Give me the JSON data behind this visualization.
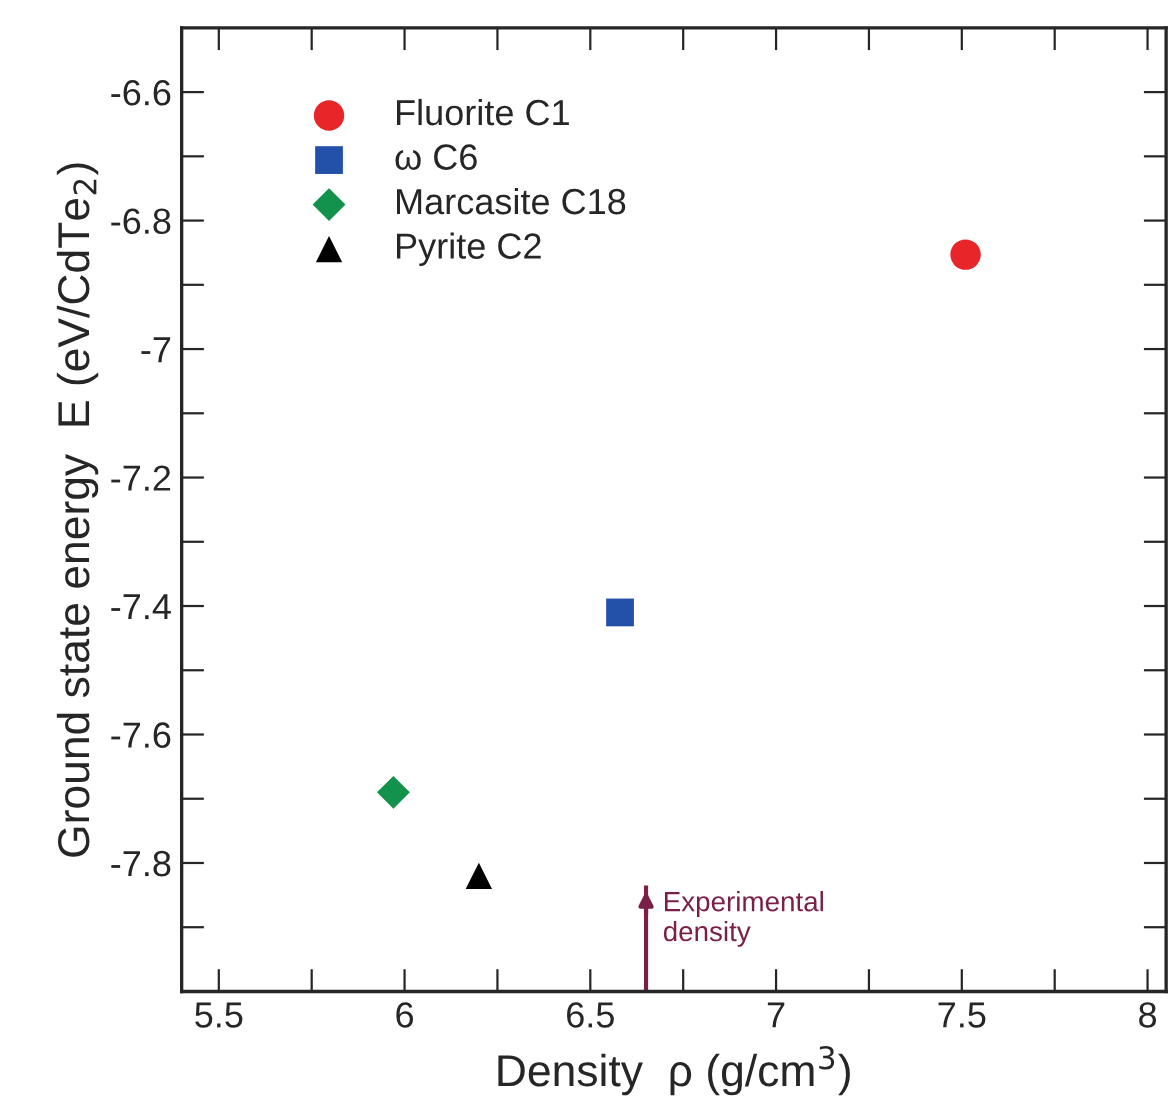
{
  "chart_data": {
    "type": "scatter",
    "xlabel": "Density  ρ (g/cm$^{3}$)",
    "ylabel": "Ground state energy  E (eV/CdTe$_{2}$)",
    "series": [
      {
        "name": "Fluorite C1",
        "color": "#e8262a",
        "marker": "circle",
        "x": [
          7.51
        ],
        "values": [
          -6.853
        ]
      },
      {
        "name": "ω C6",
        "color": "#2350a8",
        "marker": "square",
        "x": [
          6.58
        ],
        "values": [
          -7.41
        ]
      },
      {
        "name": "Marcasite C18",
        "color": "#12924a",
        "marker": "diamond",
        "x": [
          5.97
        ],
        "values": [
          -7.69
        ]
      },
      {
        "name": "Pyrite C2",
        "color": "#000000",
        "marker": "triangle",
        "x": [
          6.2
        ],
        "values": [
          -7.82
        ]
      }
    ],
    "ref_lines": [
      {
        "axis": "x",
        "value": 6.65,
        "label": "Experimental\ndensity",
        "color": "#7a2048"
      }
    ],
    "xlim": [
      5.4,
      8.05
    ],
    "ylim": [
      -8.0,
      -6.5
    ],
    "xticks": [
      5.5,
      {
        "value": 5.75,
        "label": null
      },
      6,
      {
        "value": 6.25,
        "label": null
      },
      6.5,
      {
        "value": 6.75,
        "label": null
      },
      7,
      {
        "value": 7.25,
        "label": null
      },
      7.5,
      {
        "value": 7.75,
        "label": null
      },
      8
    ],
    "yticks": [
      {
        "value": -7.9,
        "label": null
      },
      -7.8,
      {
        "value": -7.7,
        "label": null
      },
      -7.6,
      {
        "value": -7.5,
        "label": null
      },
      -7.4,
      {
        "value": -7.3,
        "label": null
      },
      -7.2,
      {
        "value": -7.1,
        "label": null
      },
      -7,
      {
        "value": -6.9,
        "label": null
      },
      -6.8,
      {
        "value": -6.7,
        "label": null
      },
      -6.6
    ],
    "legend": "top left",
    "grid": false
  }
}
